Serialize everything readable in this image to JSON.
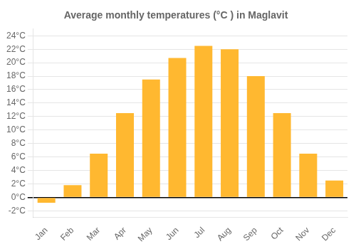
{
  "chart_data": {
    "type": "bar",
    "title": "Average monthly temperatures (°C ) in Maglavit",
    "categories": [
      "Jan",
      "Feb",
      "Mar",
      "Apr",
      "May",
      "Jun",
      "Jul",
      "Aug",
      "Sep",
      "Oct",
      "Nov",
      "Dec"
    ],
    "values": [
      -0.8,
      1.8,
      6.5,
      12.5,
      17.5,
      20.7,
      22.5,
      22.0,
      18.0,
      12.5,
      6.5,
      2.5
    ],
    "color": "#FFB830",
    "ylim": [
      -3,
      25
    ],
    "yticks": [
      {
        "value": -2,
        "label": "-2°C"
      },
      {
        "value": 0,
        "label": "0°C"
      },
      {
        "value": 2,
        "label": "2°C"
      },
      {
        "value": 4,
        "label": "4°C"
      },
      {
        "value": 6,
        "label": "6°C"
      },
      {
        "value": 8,
        "label": "8°C"
      },
      {
        "value": 10,
        "label": "10°C"
      },
      {
        "value": 12,
        "label": "12°C"
      },
      {
        "value": 14,
        "label": "14°C"
      },
      {
        "value": 16,
        "label": "16°C"
      },
      {
        "value": 18,
        "label": "18°C"
      },
      {
        "value": 20,
        "label": "20°C"
      },
      {
        "value": 22,
        "label": "22°C"
      },
      {
        "value": 24,
        "label": "24°C"
      }
    ],
    "grid": true
  }
}
